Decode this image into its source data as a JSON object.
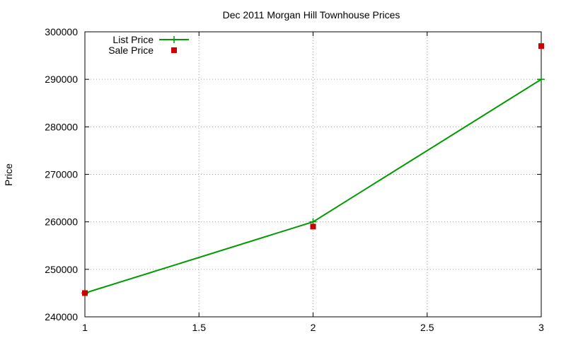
{
  "chart_data": {
    "type": "line",
    "title": "Dec 2011 Morgan Hill Townhouse Prices",
    "xlabel": "",
    "ylabel": "Price",
    "x": [
      1,
      2,
      3
    ],
    "xlim": [
      1,
      3
    ],
    "ylim": [
      240000,
      300000
    ],
    "x_ticks": [
      "1",
      "1.5",
      "2",
      "2.5",
      "3"
    ],
    "y_ticks": [
      "240000",
      "250000",
      "260000",
      "270000",
      "280000",
      "290000",
      "300000"
    ],
    "grid": true,
    "legend_position": "top-left",
    "series": [
      {
        "name": "List Price",
        "style": "line-with-plus-markers",
        "color": "#009900",
        "values": [
          245000,
          260000,
          290000
        ]
      },
      {
        "name": "Sale Price",
        "style": "square-markers",
        "color": "#cc0000",
        "values": [
          245000,
          259000,
          297000
        ]
      }
    ]
  }
}
